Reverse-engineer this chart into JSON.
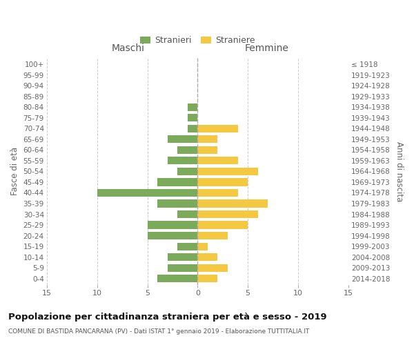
{
  "age_groups": [
    "0-4",
    "5-9",
    "10-14",
    "15-19",
    "20-24",
    "25-29",
    "30-34",
    "35-39",
    "40-44",
    "45-49",
    "50-54",
    "55-59",
    "60-64",
    "65-69",
    "70-74",
    "75-79",
    "80-84",
    "85-89",
    "90-94",
    "95-99",
    "100+"
  ],
  "birth_years": [
    "2014-2018",
    "2009-2013",
    "2004-2008",
    "1999-2003",
    "1994-1998",
    "1989-1993",
    "1984-1988",
    "1979-1983",
    "1974-1978",
    "1969-1973",
    "1964-1968",
    "1959-1963",
    "1954-1958",
    "1949-1953",
    "1944-1948",
    "1939-1943",
    "1934-1938",
    "1929-1933",
    "1924-1928",
    "1919-1923",
    "≤ 1918"
  ],
  "males": [
    4,
    3,
    3,
    2,
    5,
    5,
    2,
    4,
    10,
    4,
    2,
    3,
    2,
    3,
    1,
    1,
    1,
    0,
    0,
    0,
    0
  ],
  "females": [
    2,
    3,
    2,
    1,
    3,
    5,
    6,
    7,
    4,
    5,
    6,
    4,
    2,
    2,
    4,
    0,
    0,
    0,
    0,
    0,
    0
  ],
  "male_color": "#7aaa5a",
  "female_color": "#f5c842",
  "background_color": "#ffffff",
  "grid_color": "#cccccc",
  "title": "Popolazione per cittadinanza straniera per età e sesso - 2019",
  "subtitle": "COMUNE DI BASTIDA PANCARANA (PV) - Dati ISTAT 1° gennaio 2019 - Elaborazione TUTTITALIA.IT",
  "xlabel_left": "Maschi",
  "xlabel_right": "Femmine",
  "ylabel_left": "Fasce di età",
  "ylabel_right": "Anni di nascita",
  "legend_stranieri": "Stranieri",
  "legend_straniere": "Straniere",
  "xlim": 15,
  "xticks": [
    -15,
    -10,
    -5,
    0,
    5,
    10,
    15
  ],
  "xticklabels": [
    "15",
    "10",
    "5",
    "0",
    "5",
    "10",
    "15"
  ]
}
